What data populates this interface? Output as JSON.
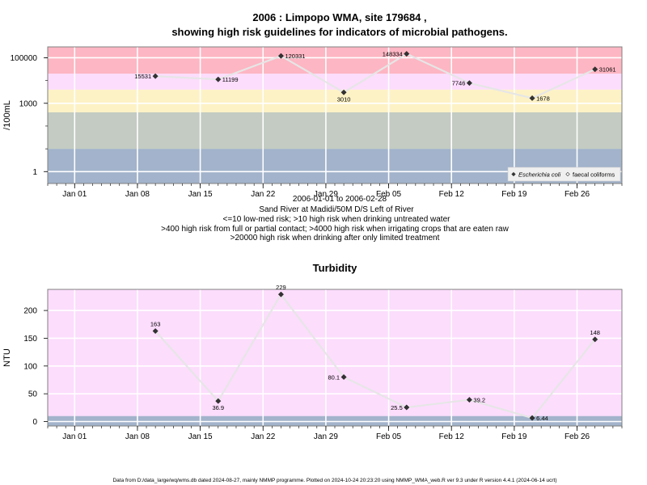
{
  "header": {
    "title_line1": "2006 : Limpopo WMA, site 179684 ,",
    "title_line2": "showing high risk guidelines for indicators of microbial pathogens."
  },
  "chart_data": [
    {
      "type": "scatter",
      "title": "",
      "ylabel": "/100mL",
      "yscale": "log",
      "ylim": [
        0.3,
        300000
      ],
      "xlim": [
        "2005-12-29",
        "2006-03-03"
      ],
      "x_ticks": [
        {
          "date": "2006-01-01",
          "label": "Jan 01"
        },
        {
          "date": "2006-01-08",
          "label": "Jan 08"
        },
        {
          "date": "2006-01-15",
          "label": "Jan 15"
        },
        {
          "date": "2006-01-22",
          "label": "Jan 22"
        },
        {
          "date": "2006-01-29",
          "label": "Jan 29"
        },
        {
          "date": "2006-02-05",
          "label": "Feb 05"
        },
        {
          "date": "2006-02-12",
          "label": "Feb 12"
        },
        {
          "date": "2006-02-19",
          "label": "Feb 19"
        },
        {
          "date": "2006-02-26",
          "label": "Feb 26"
        }
      ],
      "y_ticks": [
        {
          "value": 1,
          "label": "1"
        },
        {
          "value": 1000,
          "label": "1000"
        },
        {
          "value": 100000,
          "label": "100000"
        }
      ],
      "bands": [
        {
          "from": 0.3,
          "to": 10,
          "color": "#a2b3cb"
        },
        {
          "from": 10,
          "to": 400,
          "color": "#c3cbc2"
        },
        {
          "from": 400,
          "to": 4000,
          "color": "#fdf2c6"
        },
        {
          "from": 4000,
          "to": 20000,
          "color": "#fcddfc"
        },
        {
          "from": 20000,
          "to": 300000,
          "color": "#fdb6c3"
        }
      ],
      "series": [
        {
          "name": "Escherichia coli",
          "marker": "diamond-filled",
          "points": [
            {
              "x": "2006-01-10",
              "y": 15531,
              "label": "15531",
              "pos": "left"
            },
            {
              "x": "2006-01-17",
              "y": 11199,
              "label": "11199",
              "pos": "right"
            },
            {
              "x": "2006-01-24",
              "y": 120331,
              "label": "120331",
              "pos": "right"
            },
            {
              "x": "2006-01-31",
              "y": 3010,
              "label": "3010",
              "pos": "below"
            },
            {
              "x": "2006-02-07",
              "y": 148334,
              "label": "148334",
              "pos": "left"
            },
            {
              "x": "2006-02-14",
              "y": 7746,
              "label": "7746",
              "pos": "left"
            },
            {
              "x": "2006-02-21",
              "y": 1678,
              "label": "1678",
              "pos": "right"
            },
            {
              "x": "2006-02-28",
              "y": 31061,
              "label": "31061",
              "pos": "right"
            }
          ]
        }
      ],
      "legend": {
        "placement": "bottom-right",
        "entries": [
          {
            "label": "Escherichia coli",
            "italic": true
          },
          {
            "label": "faecal coliforms",
            "italic": false
          }
        ]
      },
      "caption": [
        "2006-01-01 to 2006-02-28",
        "Sand River at Madidi/50M D/S Left of River",
        "<=10 low-med risk; >10 high risk when drinking untreated water",
        ">400 high risk from full or partial contact; >4000 high risk when irrigating crops that are eaten raw",
        ">20000 high risk when drinking after only limited treatment"
      ]
    },
    {
      "type": "scatter",
      "title": "Turbidity",
      "ylabel": "NTU",
      "yscale": "linear",
      "ylim": [
        -8,
        238
      ],
      "xlim": [
        "2005-12-29",
        "2006-03-03"
      ],
      "x_ticks": [
        {
          "date": "2006-01-01",
          "label": "Jan 01"
        },
        {
          "date": "2006-01-08",
          "label": "Jan 08"
        },
        {
          "date": "2006-01-15",
          "label": "Jan 15"
        },
        {
          "date": "2006-01-22",
          "label": "Jan 22"
        },
        {
          "date": "2006-01-29",
          "label": "Jan 29"
        },
        {
          "date": "2006-02-05",
          "label": "Feb 05"
        },
        {
          "date": "2006-02-12",
          "label": "Feb 12"
        },
        {
          "date": "2006-02-19",
          "label": "Feb 19"
        },
        {
          "date": "2006-02-26",
          "label": "Feb 26"
        }
      ],
      "y_ticks": [
        {
          "value": 0,
          "label": "0"
        },
        {
          "value": 50,
          "label": "50"
        },
        {
          "value": 100,
          "label": "100"
        },
        {
          "value": 150,
          "label": "150"
        },
        {
          "value": 200,
          "label": "200"
        }
      ],
      "bands": [
        {
          "from": -8,
          "to": 10,
          "color": "#a2b3cb"
        },
        {
          "from": 10,
          "to": 238,
          "color": "#fcddfc"
        }
      ],
      "series": [
        {
          "name": "",
          "marker": "diamond-filled",
          "points": [
            {
              "x": "2006-01-10",
              "y": 163,
              "label": "163",
              "pos": "above"
            },
            {
              "x": "2006-01-17",
              "y": 36.9,
              "label": "36.9",
              "pos": "below"
            },
            {
              "x": "2006-01-24",
              "y": 229,
              "label": "229",
              "pos": "above"
            },
            {
              "x": "2006-01-31",
              "y": 80.1,
              "label": "80.1",
              "pos": "left"
            },
            {
              "x": "2006-02-07",
              "y": 25.5,
              "label": "25.5",
              "pos": "left"
            },
            {
              "x": "2006-02-14",
              "y": 39.2,
              "label": "39.2",
              "pos": "right"
            },
            {
              "x": "2006-02-21",
              "y": 6.44,
              "label": "6.44",
              "pos": "right"
            },
            {
              "x": "2006-02-28",
              "y": 148,
              "label": "148",
              "pos": "above"
            }
          ]
        }
      ]
    }
  ],
  "footer": {
    "note": "Data from D:/data_large/wq/wms.db dated 2024-08-27, mainly NMMP programme. Plotted on 2024-10-24 20:23:20 using NMMP_WMA_web.R ver 9.3 under R version 4.4.1 (2024-06-14 ucrt)"
  },
  "colors": {
    "gridline": "#ffffff",
    "connector": "#e6e6e6",
    "marker": "#333333",
    "frame": "#808080"
  }
}
